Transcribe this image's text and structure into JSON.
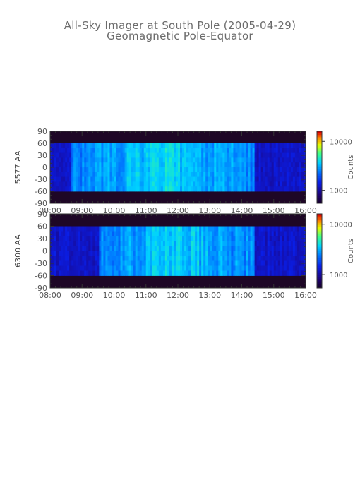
{
  "title": "All-Sky Imager at South Pole (2005-04-29)",
  "subtitle": "Geomagnetic Pole-Equator",
  "chart_data": [
    {
      "type": "heatmap",
      "ylabel": "5577 AA",
      "x_ticks": [
        "08:00",
        "09:00",
        "10:00",
        "11:00",
        "12:00",
        "13:00",
        "14:00",
        "15:00",
        "16:00"
      ],
      "y_ticks": [
        90,
        60,
        30,
        0,
        -30,
        -60,
        -90
      ],
      "xlim": [
        "08:00",
        "16:00"
      ],
      "ylim": [
        -90,
        90
      ],
      "colorbar": {
        "label": "Counts",
        "scale": "log",
        "ticks": [
          10000,
          1000
        ],
        "tick_labels": [
          "10000",
          "1000"
        ]
      },
      "data_band_y": [
        -60,
        60
      ],
      "bright_interval": [
        "08:40",
        "14:20"
      ]
    },
    {
      "type": "heatmap",
      "ylabel": "6300 AA",
      "x_ticks": [
        "08:00",
        "09:00",
        "10:00",
        "11:00",
        "12:00",
        "13:00",
        "14:00",
        "15:00",
        "16:00"
      ],
      "y_ticks": [
        90,
        60,
        30,
        0,
        -30,
        -60,
        -90
      ],
      "xlim": [
        "08:00",
        "16:00"
      ],
      "ylim": [
        -90,
        90
      ],
      "colorbar": {
        "label": "Counts",
        "scale": "log",
        "ticks": [
          10000,
          1000
        ],
        "tick_labels": [
          "10000",
          "1000"
        ]
      },
      "data_band_y": [
        -60,
        60
      ],
      "bright_interval": [
        "09:30",
        "14:20"
      ]
    }
  ]
}
